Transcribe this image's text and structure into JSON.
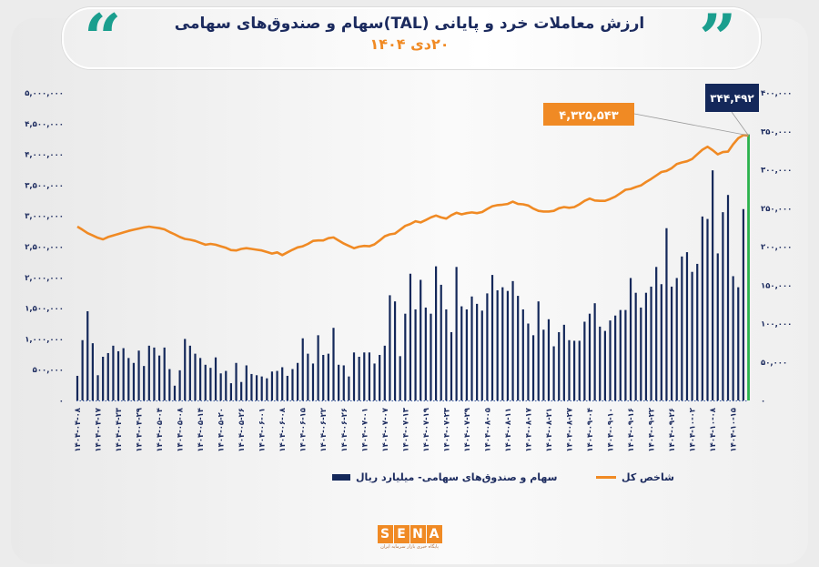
{
  "header": {
    "title": "ارزش معاملات خرد و پایانی (TAL)سهام و صندوق‌های سهامی",
    "subtitle": "۲۰دی ۱۴۰۴",
    "quote_open": "“",
    "quote_close": "”"
  },
  "logo": {
    "letters": [
      "S",
      "E",
      "N",
      "A"
    ],
    "tagline": "پایگاه خبری بازار سرمایه ایران"
  },
  "colors": {
    "bars": "#14285a",
    "line": "#f08a24",
    "latest_bar": "#2bb24c",
    "accent": "#1a9e8e",
    "title": "#1b2a5e"
  },
  "chart_data": {
    "type": "bar+line",
    "title": "ارزش معاملات خرد و پایانی (TAL)سهام و صندوق‌های سهامی",
    "left_axis": {
      "ylim": [
        0,
        5000000
      ],
      "ticks": [
        "۰",
        "۵۰۰,۰۰۰",
        "۱,۰۰۰,۰۰۰",
        "۱,۵۰۰,۰۰۰",
        "۲,۰۰۰,۰۰۰",
        "۲,۵۰۰,۰۰۰",
        "۳,۰۰۰,۰۰۰",
        "۳,۵۰۰,۰۰۰",
        "۴,۰۰۰,۰۰۰",
        "۴,۵۰۰,۰۰۰",
        "۵,۰۰۰,۰۰۰"
      ]
    },
    "right_axis": {
      "ylim": [
        0,
        400000
      ],
      "ticks": [
        "۰",
        "۵۰,۰۰۰",
        "۱۰۰,۰۰۰",
        "۱۵۰,۰۰۰",
        "۲۰۰,۰۰۰",
        "۲۵۰,۰۰۰",
        "۳۰۰,۰۰۰",
        "۳۵۰,۰۰۰",
        "۴۰۰,۰۰۰"
      ]
    },
    "grid": false,
    "legend_placement": "bottom",
    "x_tick_every": 4,
    "x_tick_labels": [
      "۱۴۰۴-۰۴-۰۸",
      "۱۴۰۴-۰۴-۱۷",
      "۱۴۰۴-۰۴-۲۳",
      "۱۴۰۴-۰۴-۲۹",
      "۱۴۰۴-۰۵-۰۴",
      "۱۴۰۴-۰۵-۰۸",
      "۱۴۰۴-۰۵-۱۴",
      "۱۴۰۴-۰۵-۲۰",
      "۱۴۰۴-۰۵-۲۶",
      "۱۴۰۴-۰۶-۰۱",
      "۱۴۰۴-۰۶-۰۸",
      "۱۴۰۴-۰۶-۱۵",
      "۱۴۰۴-۰۶-۲۲",
      "۱۴۰۴-۰۶-۲۶",
      "۱۴۰۴-۰۷-۰۱",
      "۱۴۰۴-۰۷-۰۷",
      "۱۴۰۴-۰۷-۱۳",
      "۱۴۰۴-۰۷-۱۹",
      "۱۴۰۴-۰۷-۲۳",
      "۱۴۰۴-۰۷-۲۹",
      "۱۴۰۴-۰۸-۰۵",
      "۱۴۰۴-۰۸-۱۱",
      "۱۴۰۴-۰۸-۱۷",
      "۱۴۰۴-۰۸-۲۱",
      "۱۴۰۴-۰۸-۲۷",
      "۱۴۰۴-۰۹-۰۴",
      "۱۴۰۴-۰۹-۱۰",
      "۱۴۰۴-۰۹-۱۶",
      "۱۴۰۴-۰۹-۲۲",
      "۱۴۰۴-۰۹-۲۶",
      "۱۴۰۴-۱۰-۰۲",
      "۱۴۰۴-۱۰-۰۸",
      "۱۴۰۴-۱۰-۱۵"
    ],
    "series": [
      {
        "name": "سهام و صندوق‌های سهامی- میلیارد ریال",
        "type": "bar",
        "axis": "left",
        "values": [
          400000,
          980000,
          1450000,
          930000,
          410000,
          710000,
          770000,
          890000,
          800000,
          850000,
          690000,
          610000,
          810000,
          560000,
          890000,
          860000,
          730000,
          860000,
          510000,
          240000,
          490000,
          1000000,
          890000,
          760000,
          690000,
          580000,
          530000,
          700000,
          440000,
          480000,
          280000,
          610000,
          300000,
          570000,
          430000,
          410000,
          390000,
          360000,
          470000,
          480000,
          540000,
          400000,
          510000,
          610000,
          1010000,
          760000,
          600000,
          1060000,
          740000,
          760000,
          1180000,
          580000,
          570000,
          390000,
          780000,
          710000,
          780000,
          780000,
          600000,
          740000,
          890000,
          1710000,
          1610000,
          720000,
          1410000,
          2060000,
          1480000,
          1960000,
          1510000,
          1410000,
          2180000,
          1880000,
          1480000,
          1110000,
          2170000,
          1530000,
          1480000,
          1690000,
          1570000,
          1460000,
          1740000,
          2040000,
          1790000,
          1840000,
          1780000,
          1940000,
          1700000,
          1480000,
          1250000,
          1060000,
          1610000,
          1150000,
          1320000,
          880000,
          1110000,
          1230000,
          980000,
          970000,
          970000,
          1280000,
          1410000,
          1580000,
          1200000,
          1130000,
          1300000,
          1380000,
          1470000,
          1470000,
          1990000,
          1750000,
          1510000,
          1750000,
          1850000,
          2170000,
          1890000,
          2800000,
          1850000,
          1990000,
          2340000,
          2410000,
          2090000,
          2220000,
          2990000,
          2950000,
          3740000,
          2390000,
          3060000,
          3340000,
          2020000,
          1840000,
          3110000,
          4325543
        ]
      },
      {
        "name": "شاخص کل",
        "type": "line",
        "axis": "right",
        "values": [
          226000,
          222000,
          217500,
          214500,
          211500,
          209500,
          212500,
          214500,
          216500,
          218500,
          220500,
          222000,
          223500,
          225000,
          226000,
          225000,
          224000,
          222500,
          219000,
          216000,
          212500,
          210000,
          209000,
          207500,
          205000,
          202500,
          203500,
          202500,
          200500,
          198500,
          195500,
          195000,
          197000,
          198000,
          197000,
          196000,
          195000,
          193000,
          191000,
          192500,
          189000,
          192500,
          196000,
          199000,
          200500,
          203500,
          207500,
          208000,
          208000,
          211000,
          212000,
          208000,
          204000,
          201000,
          198000,
          200000,
          201000,
          200500,
          203000,
          208000,
          213500,
          216000,
          217000,
          222000,
          227000,
          229500,
          233000,
          231500,
          234500,
          238000,
          240500,
          238000,
          236500,
          241000,
          244000,
          242000,
          243500,
          244500,
          243500,
          245000,
          249000,
          252500,
          254000,
          254500,
          255500,
          258500,
          255500,
          255000,
          253500,
          249500,
          246500,
          245700,
          245700,
          246500,
          250000,
          251500,
          250500,
          251500,
          255000,
          259500,
          262500,
          260000,
          259500,
          259500,
          262000,
          265000,
          269500,
          274000,
          275000,
          277500,
          279500,
          284000,
          288000,
          292500,
          297000,
          298500,
          302000,
          307500,
          309500,
          311000,
          314000,
          320000,
          326000,
          330000,
          325500,
          320000,
          323000,
          323500,
          333000,
          341000,
          345000,
          344492
        ]
      }
    ],
    "annotations": {
      "latest_bar_value": "۴,۳۲۵,۵۴۳",
      "latest_index_value": "۳۴۴,۴۹۲"
    }
  },
  "legend": {
    "bars_label": "سهام و صندوق‌های سهامی- میلیارد ریال",
    "line_label": "شاخص کل"
  }
}
